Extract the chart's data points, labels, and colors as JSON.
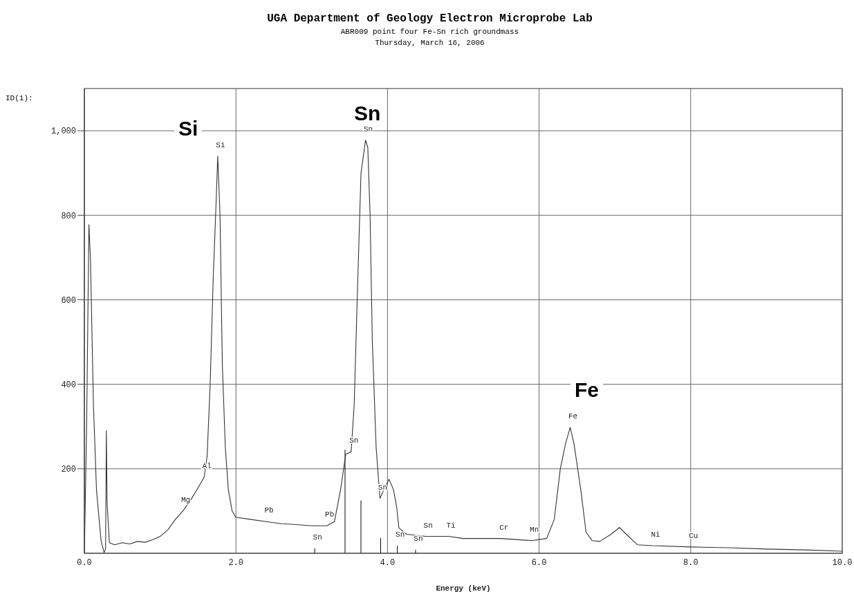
{
  "chart_data": {
    "type": "line",
    "title": "UGA Department of Geology Electron Microprobe Lab",
    "subtitle": "ABR009 point four Fe-Sn rich groundmass\nThursday, March 16, 2006",
    "xlabel": "Energy (keV)",
    "xlim": [
      0,
      10
    ],
    "xticks": [
      {
        "value": 0,
        "label": "0.0"
      },
      {
        "value": 2,
        "label": "2.0"
      },
      {
        "value": 4,
        "label": "4.0"
      },
      {
        "value": 6,
        "label": "6.0"
      },
      {
        "value": 8,
        "label": "8.0"
      },
      {
        "value": 10,
        "label": "10.0"
      }
    ],
    "ylim": [
      0,
      1100
    ],
    "yticks": [
      200,
      400,
      600,
      800,
      {
        "value": 1000,
        "label": "1,000"
      }
    ],
    "grid": true,
    "marker": "none",
    "line_style": "solid",
    "series": [
      {
        "color": "#333333",
        "x": [
          0,
          0.03,
          0.06,
          0.08,
          0.12,
          0.16,
          0.22,
          0.26,
          0.28,
          0.29,
          0.3,
          0.33,
          0.4,
          0.5,
          0.6,
          0.7,
          0.8,
          0.9,
          1.0,
          1.1,
          1.2,
          1.3,
          1.4,
          1.5,
          1.58,
          1.62,
          1.66,
          1.7,
          1.73,
          1.76,
          1.79,
          1.82,
          1.86,
          1.9,
          1.95,
          2.0,
          2.2,
          2.4,
          2.6,
          2.8,
          3.0,
          3.2,
          3.3,
          3.38,
          3.45,
          3.52,
          3.56,
          3.6,
          3.65,
          3.71,
          3.74,
          3.77,
          3.8,
          3.85,
          3.9,
          3.95,
          4.02,
          4.08,
          4.12,
          4.15,
          4.25,
          4.5,
          4.8,
          5.0,
          5.5,
          5.9,
          6.1,
          6.2,
          6.28,
          6.35,
          6.41,
          6.46,
          6.55,
          6.62,
          6.7,
          6.8,
          6.95,
          7.06,
          7.15,
          7.3,
          7.5,
          8.0,
          8.5,
          9.0,
          9.5,
          10.0
        ],
        "values": [
          0,
          300,
          778,
          700,
          350,
          150,
          30,
          2,
          10,
          290,
          120,
          25,
          20,
          25,
          22,
          28,
          26,
          32,
          40,
          55,
          80,
          100,
          125,
          155,
          180,
          230,
          400,
          650,
          790,
          940,
          800,
          450,
          250,
          150,
          100,
          85,
          80,
          75,
          70,
          68,
          65,
          65,
          75,
          150,
          235,
          240,
          350,
          600,
          900,
          978,
          960,
          800,
          500,
          250,
          130,
          150,
          175,
          150,
          110,
          60,
          45,
          40,
          40,
          35,
          35,
          30,
          35,
          80,
          200,
          260,
          298,
          260,
          150,
          50,
          30,
          28,
          45,
          61,
          45,
          20,
          18,
          15,
          13,
          10,
          8,
          5
        ]
      },
      {
        "type": "bar",
        "color": "#000000",
        "x": [
          3.04,
          3.44,
          3.65,
          3.91,
          4.13,
          4.37
        ],
        "values": [
          12,
          245,
          125,
          36,
          18,
          8
        ]
      }
    ],
    "annotations": [
      "Si",
      "Sn",
      "Fe",
      "ID(1):",
      {
        "text": "Si",
        "x": 1.76,
        "y": 940
      },
      {
        "text": "Sn",
        "x": 3.71,
        "y": 978
      },
      {
        "text": "Fe",
        "x": 6.41,
        "y": 298
      },
      {
        "text": "Mg",
        "x": 1.3,
        "y": 100
      },
      {
        "text": "Al",
        "x": 1.58,
        "y": 180
      },
      {
        "text": "Pb",
        "x": 2.4,
        "y": 75
      },
      {
        "text": "Pb",
        "x": 3.2,
        "y": 65
      },
      {
        "text": "Sn",
        "x": 3.04,
        "y": 12
      },
      {
        "text": "Sn",
        "x": 3.52,
        "y": 240
      },
      {
        "text": "Sn",
        "x": 3.9,
        "y": 130
      },
      {
        "text": "Sn",
        "x": 4.13,
        "y": 18
      },
      {
        "text": "Sn",
        "x": 4.37,
        "y": 8
      },
      {
        "text": "Sn",
        "x": 4.5,
        "y": 40
      },
      {
        "text": "Ti",
        "x": 4.8,
        "y": 40
      },
      {
        "text": "Cr",
        "x": 5.5,
        "y": 35
      },
      {
        "text": "Mn",
        "x": 5.9,
        "y": 30
      },
      {
        "text": "Ni",
        "x": 7.5,
        "y": 18
      },
      {
        "text": "Cu",
        "x": 8.0,
        "y": 15
      }
    ]
  }
}
